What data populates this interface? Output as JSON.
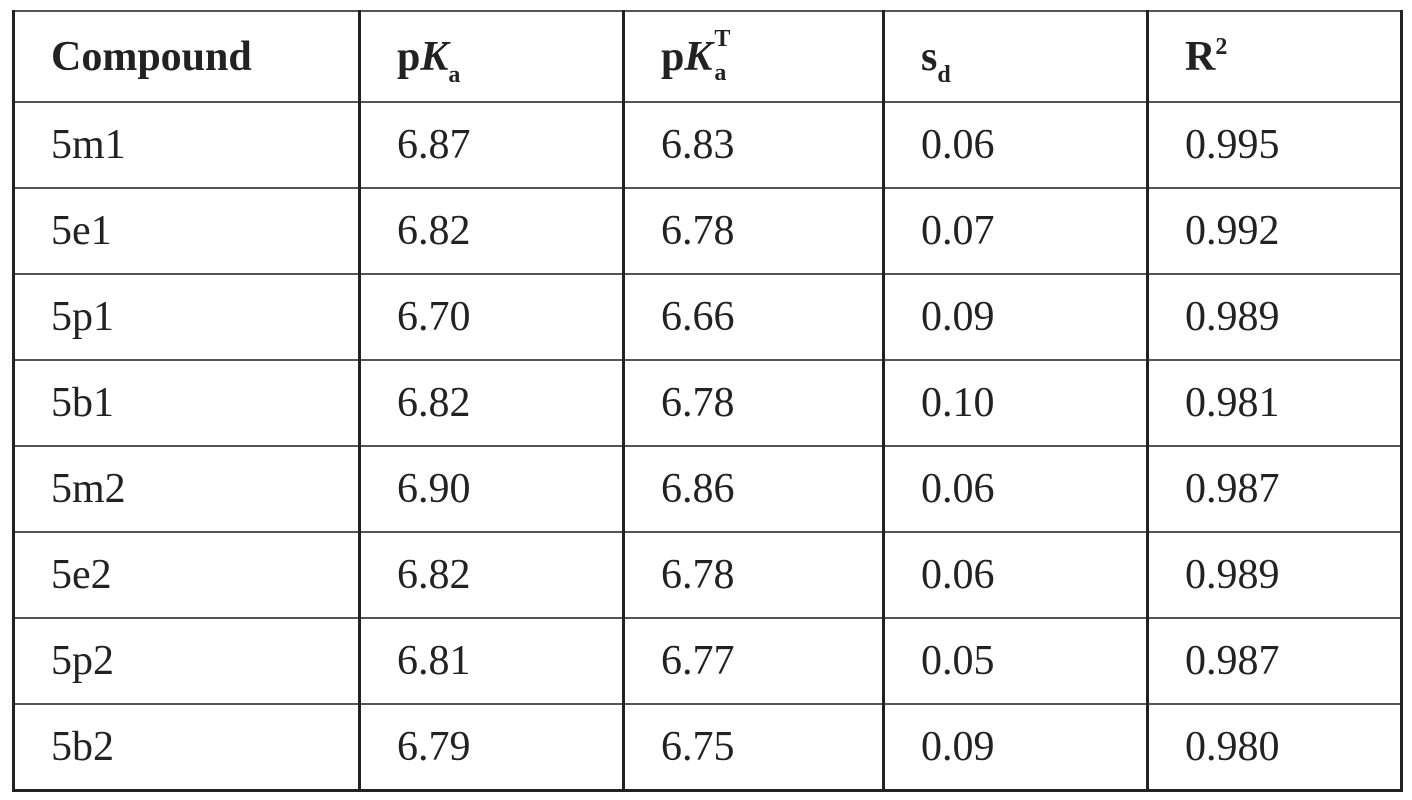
{
  "table": {
    "header": [
      "Compound",
      {
        "base": "p",
        "italic": "K",
        "sub": "a"
      },
      {
        "base": "p",
        "italic": "K",
        "sup": "T",
        "sub": "a"
      },
      {
        "base": "s",
        "sub": "d"
      },
      {
        "base": "R",
        "sup": "2"
      }
    ],
    "rows": [
      [
        "5m1",
        "6.87",
        "6.83",
        "0.06",
        "0.995"
      ],
      [
        "5e1",
        "6.82",
        "6.78",
        "0.07",
        "0.992"
      ],
      [
        "5p1",
        "6.70",
        "6.66",
        "0.09",
        "0.989"
      ],
      [
        "5b1",
        "6.82",
        "6.78",
        "0.10",
        "0.981"
      ],
      [
        "5m2",
        "6.90",
        "6.86",
        "0.06",
        "0.987"
      ],
      [
        "5e2",
        "6.82",
        "6.78",
        "0.06",
        "0.989"
      ],
      [
        "5p2",
        "6.81",
        "6.77",
        "0.05",
        "0.987"
      ],
      [
        "5b2",
        "6.79",
        "6.75",
        "0.09",
        "0.980"
      ]
    ]
  }
}
